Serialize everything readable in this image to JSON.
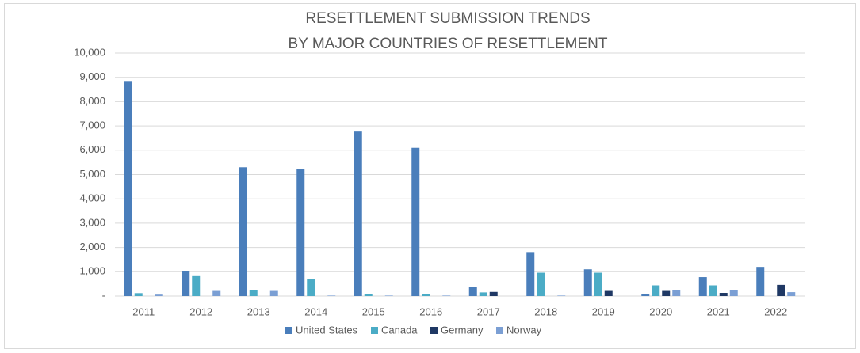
{
  "chart_data": {
    "type": "bar",
    "title": [
      "RESETTLEMENT SUBMISSION TRENDS",
      "BY MAJOR COUNTRIES OF RESETTLEMENT"
    ],
    "categories": [
      "2011",
      "2012",
      "2013",
      "2014",
      "2015",
      "2016",
      "2017",
      "2018",
      "2019",
      "2020",
      "2021",
      "2022"
    ],
    "series": [
      {
        "name": "United States",
        "color": "#4a7ebb",
        "values": [
          8850,
          1020,
          5300,
          5230,
          6770,
          6100,
          380,
          1780,
          1100,
          80,
          780,
          1200
        ]
      },
      {
        "name": "Canada",
        "color": "#4bacc6",
        "values": [
          120,
          820,
          250,
          700,
          70,
          80,
          150,
          960,
          960,
          440,
          440,
          0
        ]
      },
      {
        "name": "Germany",
        "color": "#1f3864",
        "values": [
          0,
          0,
          0,
          0,
          0,
          0,
          170,
          0,
          210,
          210,
          130,
          460
        ]
      },
      {
        "name": "Norway",
        "color": "#7b9fd4",
        "values": [
          60,
          210,
          210,
          20,
          20,
          20,
          0,
          20,
          0,
          240,
          230,
          160
        ]
      }
    ],
    "ylim": [
      0,
      10000
    ],
    "yticks": [
      {
        "value": 0,
        "label": "-"
      },
      {
        "value": 1000,
        "label": "1,000"
      },
      {
        "value": 2000,
        "label": "2,000"
      },
      {
        "value": 3000,
        "label": "3,000"
      },
      {
        "value": 4000,
        "label": "4,000"
      },
      {
        "value": 5000,
        "label": "5,000"
      },
      {
        "value": 6000,
        "label": "6,000"
      },
      {
        "value": 7000,
        "label": "7,000"
      },
      {
        "value": 8000,
        "label": "8,000"
      },
      {
        "value": 9000,
        "label": "9,000"
      },
      {
        "value": 10000,
        "label": "10,000"
      }
    ],
    "grid": true,
    "legend": "bottom"
  }
}
